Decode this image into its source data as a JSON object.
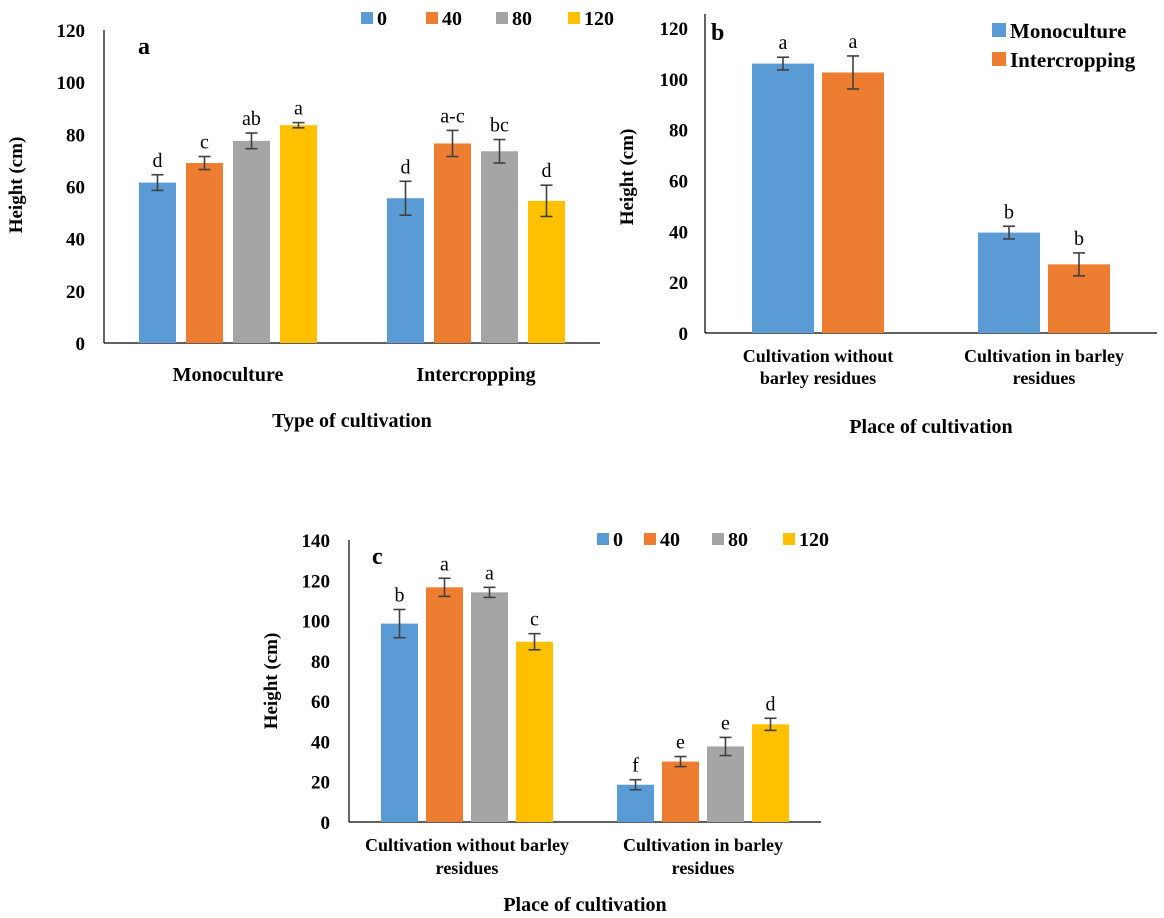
{
  "chart_data": [
    {
      "type": "bar",
      "panel_label": "a",
      "xlabel": "Type of cultivation",
      "ylabel": "Height (cm)",
      "ylim": [
        0,
        120
      ],
      "ytick_step": 20,
      "categories": [
        "Monoculture",
        "Intercropping"
      ],
      "legend_position": "top",
      "series": [
        {
          "name": "0",
          "color": "#5b9bd5",
          "values": [
            61.5,
            55.5
          ],
          "errors": [
            3,
            6.5
          ],
          "letters": [
            "d",
            "d"
          ]
        },
        {
          "name": "40",
          "color": "#ed7d31",
          "values": [
            69,
            76.5
          ],
          "errors": [
            2.5,
            5
          ],
          "letters": [
            "c",
            "a-c"
          ]
        },
        {
          "name": "80",
          "color": "#a5a5a5",
          "values": [
            77.5,
            73.5
          ],
          "errors": [
            3,
            4.5
          ],
          "letters": [
            "ab",
            "bc"
          ]
        },
        {
          "name": "120",
          "color": "#ffc000",
          "values": [
            83.5,
            54.5
          ],
          "errors": [
            1,
            6
          ],
          "letters": [
            "a",
            "d"
          ]
        }
      ]
    },
    {
      "type": "bar",
      "panel_label": "b",
      "xlabel": "Place of cultivation",
      "ylabel": "Height (cm)",
      "ylim": [
        0,
        120
      ],
      "ytick_step": 20,
      "categories": [
        "Cultivation without barley residues",
        "Cultivation in barley residues"
      ],
      "legend_position": "top-right",
      "series": [
        {
          "name": "Monoculture",
          "color": "#5b9bd5",
          "values": [
            106,
            39.5
          ],
          "errors": [
            2.5,
            2.5
          ],
          "letters": [
            "a",
            "b"
          ]
        },
        {
          "name": "Intercropping",
          "color": "#ed7d31",
          "values": [
            102.5,
            27
          ],
          "errors": [
            6.5,
            4.5
          ],
          "letters": [
            "a",
            "b"
          ]
        }
      ]
    },
    {
      "type": "bar",
      "panel_label": "c",
      "xlabel": "Place of cultivation",
      "ylabel": "Height (cm)",
      "ylim": [
        0,
        140
      ],
      "ytick_step": 20,
      "categories": [
        "Cultivation without barley residues",
        "Cultivation in barley residues"
      ],
      "legend_position": "top",
      "series": [
        {
          "name": "0",
          "color": "#5b9bd5",
          "values": [
            98.5,
            18.5
          ],
          "errors": [
            7,
            2.5
          ],
          "letters": [
            "b",
            "f"
          ]
        },
        {
          "name": "40",
          "color": "#ed7d31",
          "values": [
            116.5,
            30
          ],
          "errors": [
            4.5,
            2.5
          ],
          "letters": [
            "a",
            "e"
          ]
        },
        {
          "name": "80",
          "color": "#a5a5a5",
          "values": [
            114,
            37.5
          ],
          "errors": [
            2.5,
            4.5
          ],
          "letters": [
            "a",
            "e"
          ]
        },
        {
          "name": "120",
          "color": "#ffc000",
          "values": [
            89.5,
            48.5
          ],
          "errors": [
            4,
            3
          ],
          "letters": [
            "c",
            "d"
          ]
        }
      ]
    }
  ]
}
